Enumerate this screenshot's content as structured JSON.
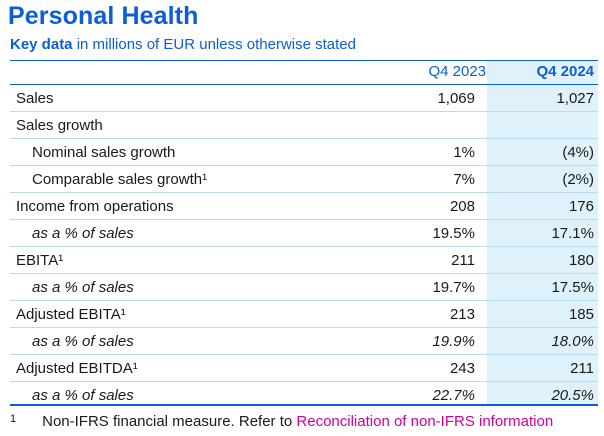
{
  "title": "Personal Health",
  "subtitle_bold": "Key data",
  "subtitle_rest": " in millions of EUR unless otherwise stated",
  "columns": [
    "Q4 2023",
    "Q4 2024"
  ],
  "rows": [
    {
      "label": "Sales",
      "q4_2023": "1,069",
      "q4_2024": "1,027",
      "style": "normal"
    },
    {
      "label": "Sales growth",
      "q4_2023": "",
      "q4_2024": "",
      "style": "normal"
    },
    {
      "label": "Nominal sales growth",
      "q4_2023": "1%",
      "q4_2024": "(4%)",
      "style": "indent"
    },
    {
      "label": "Comparable sales growth¹",
      "q4_2023": "7%",
      "q4_2024": "(2%)",
      "style": "indent"
    },
    {
      "label": "Income from operations",
      "q4_2023": "208",
      "q4_2024": "176",
      "style": "normal"
    },
    {
      "label": "as a % of sales",
      "q4_2023": "19.5%",
      "q4_2024": "17.1%",
      "style": "italic-label"
    },
    {
      "label": "EBITA¹",
      "q4_2023": "211",
      "q4_2024": "180",
      "style": "normal"
    },
    {
      "label": "as a % of sales",
      "q4_2023": "19.7%",
      "q4_2024": "17.5%",
      "style": "italic-label"
    },
    {
      "label": "Adjusted EBITA¹",
      "q4_2023": "213",
      "q4_2024": "185",
      "style": "normal"
    },
    {
      "label": "as a % of sales",
      "q4_2023": "19.9%",
      "q4_2024": "18.0%",
      "style": "italic-all"
    },
    {
      "label": "Adjusted EBITDA¹",
      "q4_2023": "243",
      "q4_2024": "211",
      "style": "normal"
    },
    {
      "label": "as a % of sales",
      "q4_2023": "22.7%",
      "q4_2024": "20.5%",
      "style": "italic-all"
    }
  ],
  "footnote": {
    "mark": "1",
    "text": "Non-IFRS financial measure. Refer to ",
    "link": "Reconciliation of non-IFRS information"
  },
  "colors": {
    "accent": "#0b5ed7",
    "highlight": "#dff2fb",
    "link": "#d1009e"
  }
}
